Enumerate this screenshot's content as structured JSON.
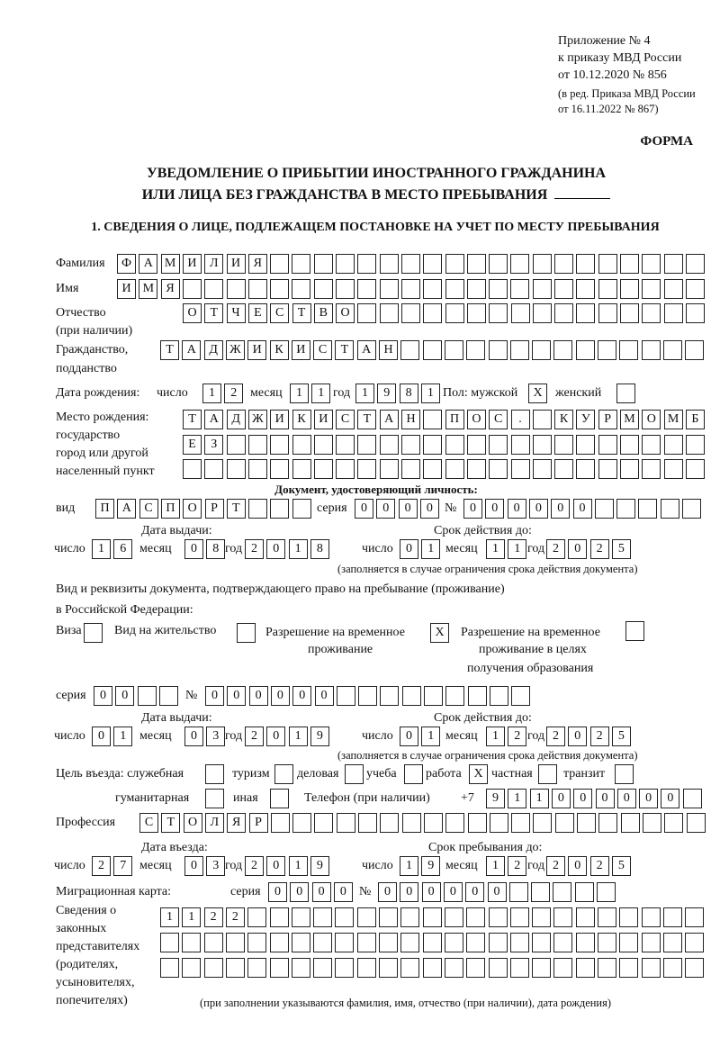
{
  "header": {
    "appendix": "Приложение № 4",
    "order": "к приказу МВД России",
    "order_date": "от 10.12.2020 № 856",
    "revision": "(в ред. Приказа МВД России",
    "revision_date": "от 16.11.2022 № 867)",
    "form": "ФОРМА",
    "title_1": "УВЕДОМЛЕНИЕ О ПРИБЫТИИ ИНОСТРАННОГО ГРАЖДАНИНА",
    "title_2": "ИЛИ ЛИЦА БЕЗ ГРАЖДАНСТВА В МЕСТО ПРЕБЫВАНИЯ",
    "section_1": "1. СВЕДЕНИЯ О ЛИЦЕ, ПОДЛЕЖАЩЕМ ПОСТАНОВКЕ НА УЧЕТ ПО МЕСТУ ПРЕБЫВАНИЯ"
  },
  "labels": {
    "surname": "Фамилия",
    "name": "Имя",
    "patronymic": "Отчество",
    "patronymic_note": "(при наличии)",
    "citizenship": "Гражданство,",
    "citizenship_2": "подданство",
    "birth_date": "Дата рождения:",
    "day": "число",
    "month": "месяц",
    "year": "год",
    "sex_male": "Пол: мужской",
    "sex_female": "женский",
    "birthplace": "Место рождения:",
    "birthplace_2": "государство",
    "birthplace_3": "город или другой",
    "birthplace_4": "населенный пункт",
    "id_doc": "Документ, удостоверяющий личность:",
    "kind": "вид",
    "series": "серия",
    "number": "№",
    "issue_date": "Дата выдачи:",
    "valid_until": "Срок действия до:",
    "valid_note": "(заполняется в случае ограничения срока действия документа)",
    "residence_doc_1": "Вид и реквизиты документа, подтверждающего право на пребывание (проживание)",
    "residence_doc_2": "в Российской Федерации:",
    "visa": "Виза",
    "residence_permit": "Вид на жительство",
    "temp_permit_1": "Разрешение на временное",
    "temp_permit_2": "проживание",
    "edu_permit_1": "Разрешение на временное",
    "edu_permit_2": "проживание в целях",
    "edu_permit_3": "получения образования",
    "purpose": "Цель въезда: служебная",
    "tourism": "туризм",
    "business": "деловая",
    "study": "учеба",
    "work": "работа",
    "private": "частная",
    "transit": "транзит",
    "humanitarian": "гуманитарная",
    "other": "иная",
    "phone": "Телефон (при наличии)",
    "phone_prefix": "+7",
    "profession": "Профессия",
    "entry_date": "Дата въезда:",
    "stay_until": "Срок пребывания до:",
    "migration_card": "Миграционная карта:",
    "reps_1": "Сведения о",
    "reps_2": "законных",
    "reps_3": "представителях",
    "reps_4": "(родителях,",
    "reps_5": "усыновителях,",
    "reps_6": "попечителях)",
    "reps_note": "(при заполнении указываются фамилия, имя, отчество (при наличии), дата рождения)"
  },
  "person": {
    "surname": "ФАМИЛИЯ",
    "name": "ИМЯ",
    "patronymic": "ОТЧЕСТВО",
    "citizenship": "ТАДЖИКИСТАН",
    "birth_day": "12",
    "birth_month": "11",
    "birth_year": "1981",
    "sex_male": "X",
    "sex_female": "",
    "birthplace_1": "ТАДЖИКИСТАН ПОС. КУРМОМБ",
    "birthplace_2": "ЕЗ",
    "birthplace_3": ""
  },
  "id_document": {
    "kind": "ПАСПОРТ",
    "series": "0000",
    "number": "000000",
    "issue_day": "16",
    "issue_month": "08",
    "issue_year": "2018",
    "valid_day": "01",
    "valid_month": "11",
    "valid_year": "2025"
  },
  "residence_document": {
    "visa": "",
    "residence_permit": "",
    "temp_permit": "X",
    "edu_permit": "",
    "series": "00",
    "number": "000000",
    "issue_day": "01",
    "issue_month": "03",
    "issue_year": "2019",
    "valid_day": "01",
    "valid_month": "12",
    "valid_year": "2025"
  },
  "purpose": {
    "official": "",
    "tourism": "",
    "business": "",
    "study": "",
    "work": "X",
    "private": "",
    "transit": "",
    "humanitarian": "",
    "other": ""
  },
  "phone": "911000000",
  "profession": "СТОЛЯР",
  "stay": {
    "entry_day": "27",
    "entry_month": "03",
    "entry_year": "2019",
    "until_day": "19",
    "until_month": "12",
    "until_year": "2025"
  },
  "migration_card": {
    "series": "0000",
    "number": "000000"
  },
  "representatives": {
    "line_1": "1122",
    "line_2": "",
    "line_3": ""
  }
}
